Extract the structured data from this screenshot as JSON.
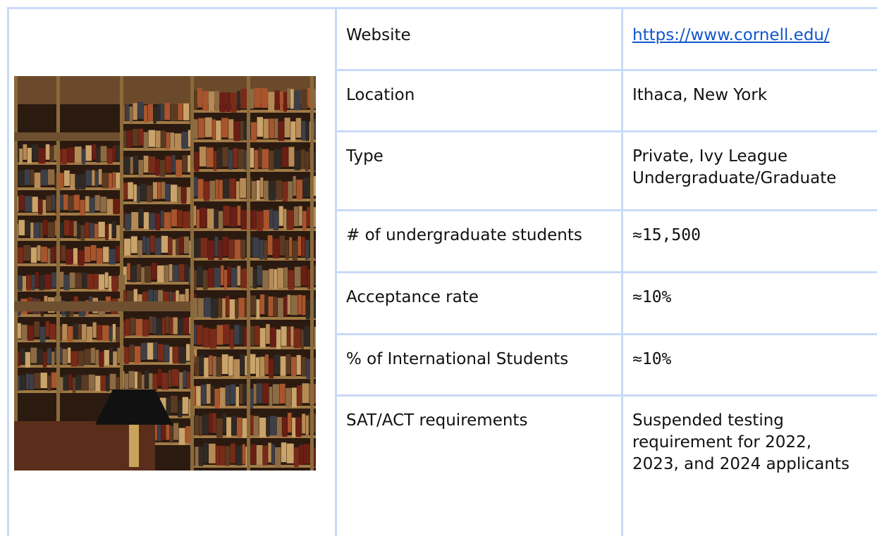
{
  "table": {
    "rows": [
      {
        "label": "Website",
        "value": [
          "https://www.cornell.edu/"
        ]
      },
      {
        "label": "Location",
        "value": [
          "Ithaca, New York"
        ]
      },
      {
        "label": "Type",
        "value": [
          "Private, Ivy League",
          "Undergraduate/Graduate"
        ]
      },
      {
        "label": "# of undergraduate students",
        "value": [
          "≈15,500"
        ]
      },
      {
        "label": "Acceptance rate",
        "value": [
          "≈10%"
        ]
      },
      {
        "label": "% of International Students",
        "value": [
          "≈10%"
        ]
      },
      {
        "label": "SAT/ACT requirements",
        "value": [
          "Suspended testing",
          "requirement for 2022,",
          "2023, and 2024 applicants"
        ]
      }
    ]
  }
}
